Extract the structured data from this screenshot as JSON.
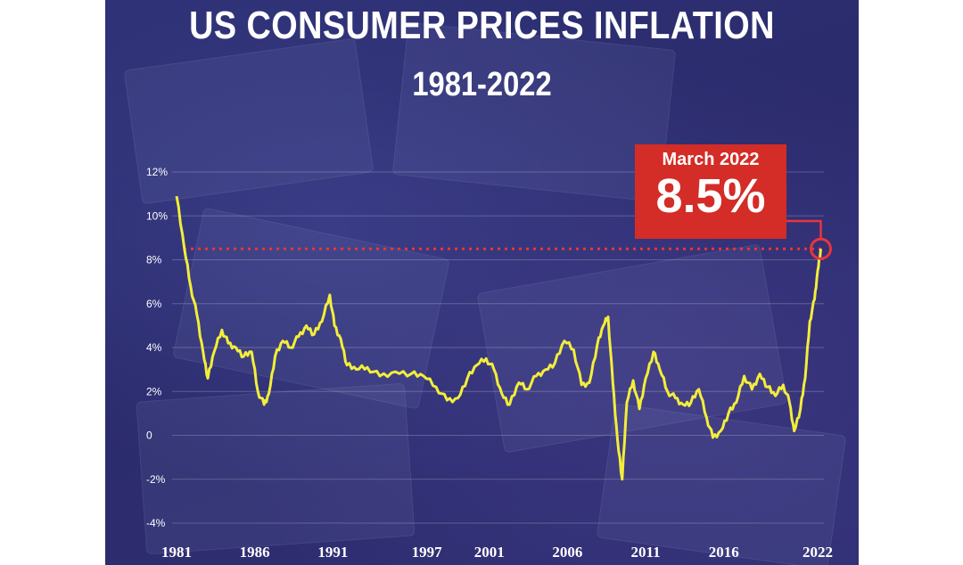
{
  "title": "US CONSUMER PRICES INFLATION",
  "subtitle": "1981-2022",
  "callout": {
    "date": "March 2022",
    "value": "8.5%"
  },
  "colors": {
    "background": "#2d2f72",
    "line": "#f3ee3a",
    "callout": "#d42c26",
    "reference_line": "#e8353a"
  },
  "chart_data": {
    "type": "line",
    "title": "US CONSUMER PRICES INFLATION",
    "subtitle": "1981-2022",
    "xlabel": "",
    "ylabel": "",
    "xlim": [
      1981,
      2022.4
    ],
    "ylim": [
      -4,
      12
    ],
    "y_ticks": [
      12,
      10,
      8,
      6,
      4,
      2,
      0,
      -2,
      -4
    ],
    "y_tick_labels": [
      "12%",
      "10%",
      "8%",
      "6%",
      "4%",
      "2%",
      "0",
      "-2%",
      "-4%"
    ],
    "x_tick_labels": [
      "1981",
      "1986",
      "1991",
      "1997",
      "2001",
      "2006",
      "2011",
      "2016",
      "2022"
    ],
    "x_tick_values": [
      1981,
      1986,
      1991,
      1997,
      2001,
      2006,
      2011,
      2016,
      2022
    ],
    "grid": true,
    "reference_line": {
      "value": 8.5
    },
    "highlight": {
      "x": 2022.2,
      "y": 8.5
    },
    "series": [
      {
        "x": [
          1981.0,
          1981.5,
          1981.9,
          1982.3,
          1982.7,
          1983.0,
          1983.4,
          1983.9,
          1984.3,
          1984.8,
          1985.3,
          1985.8,
          1986.2,
          1986.6,
          1986.9,
          1987.3,
          1987.8,
          1988.3,
          1988.8,
          1989.3,
          1989.8,
          1990.3,
          1990.8,
          1991.1,
          1991.5,
          1991.9,
          1992.5,
          1993.2,
          1994.0,
          1995.0,
          1996.0,
          1996.8,
          1997.6,
          1998.3,
          1999.0,
          1999.6,
          2000.2,
          2000.8,
          2001.3,
          2001.8,
          2002.3,
          2002.9,
          2003.4,
          2004.0,
          2004.6,
          2005.2,
          2005.8,
          2006.4,
          2006.9,
          2007.4,
          2007.9,
          2008.3,
          2008.6,
          2008.9,
          2009.2,
          2009.5,
          2009.8,
          2010.2,
          2010.6,
          2011.0,
          2011.5,
          2011.9,
          2012.4,
          2012.9,
          2013.4,
          2013.9,
          2014.4,
          2014.9,
          2015.3,
          2015.8,
          2016.3,
          2016.8,
          2017.3,
          2017.8,
          2018.3,
          2018.8,
          2019.3,
          2019.8,
          2020.2,
          2020.5,
          2020.9,
          2021.2,
          2021.5,
          2021.8,
          2022.0,
          2022.2
        ],
        "values": [
          10.9,
          8.5,
          6.8,
          5.5,
          3.8,
          2.6,
          3.8,
          4.8,
          4.2,
          4.0,
          3.6,
          3.8,
          2.0,
          1.4,
          1.9,
          3.6,
          4.3,
          4.0,
          4.5,
          5.0,
          4.6,
          5.2,
          6.4,
          5.0,
          4.4,
          3.2,
          3.0,
          3.1,
          2.7,
          2.9,
          2.8,
          2.7,
          2.2,
          1.6,
          1.7,
          2.6,
          3.2,
          3.5,
          3.0,
          1.9,
          1.4,
          2.4,
          2.1,
          2.7,
          3.0,
          3.3,
          4.3,
          3.9,
          2.3,
          2.4,
          4.1,
          5.0,
          5.4,
          2.4,
          -0.2,
          -2.0,
          1.5,
          2.5,
          1.2,
          2.6,
          3.8,
          3.0,
          2.0,
          1.7,
          1.4,
          1.5,
          2.1,
          0.8,
          -0.1,
          0.2,
          1.0,
          1.5,
          2.7,
          2.1,
          2.8,
          2.2,
          1.8,
          2.3,
          1.5,
          0.2,
          1.2,
          2.6,
          5.2,
          6.2,
          7.5,
          8.5
        ]
      }
    ]
  }
}
